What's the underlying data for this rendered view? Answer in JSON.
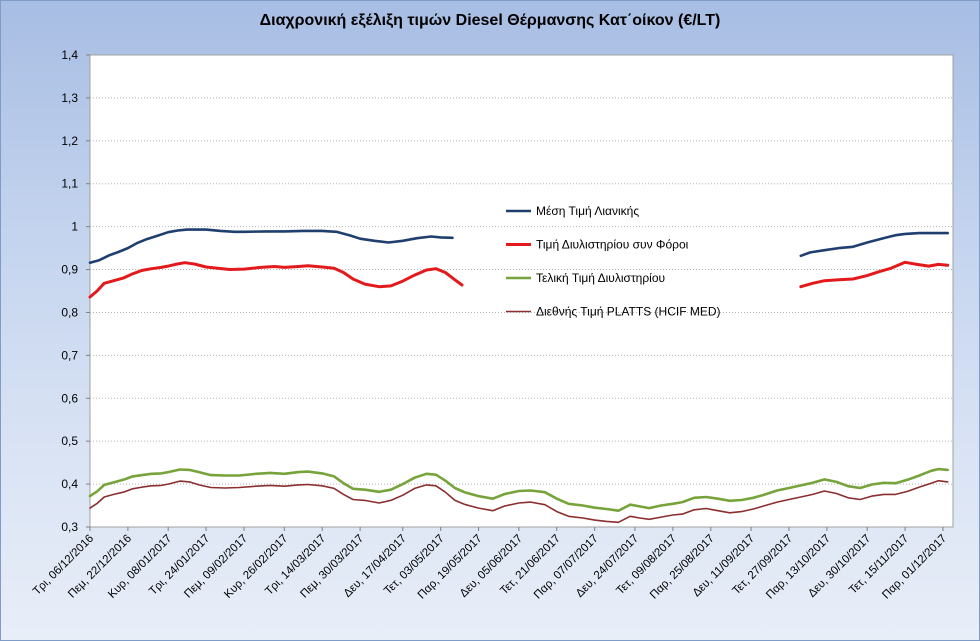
{
  "chart_data": {
    "type": "line",
    "title": "Διαχρονική εξέλιξη τιμών Diesel Θέρμανσης Κατ΄οίκον (€/LT)",
    "xlabel": "",
    "ylabel": "",
    "ylim": [
      0.3,
      1.4
    ],
    "yticks": [
      "0,3",
      "0,4",
      "0,5",
      "0,6",
      "0,7",
      "0,8",
      "0,9",
      "1",
      "1,1",
      "1,2",
      "1,3",
      "1,4"
    ],
    "grid": true,
    "legend_position": "right-middle",
    "xlim_days": [
      0,
      360
    ],
    "x": [
      "Τρι, 06/12/2016",
      "Πεμ, 22/12/2016",
      "Κυρ, 08/01/2017",
      "Τρι, 24/01/2017",
      "Πεμ, 09/02/2017",
      "Κυρ, 26/02/2017",
      "Τρι, 14/03/2017",
      "Πεμ, 30/03/2017",
      "Δευ, 17/04/2017",
      "Τετ, 03/05/2017",
      "Παρ, 19/05/2017",
      "Δευ, 05/06/2017",
      "Τετ, 21/06/2017",
      "Παρ, 07/07/2017",
      "Δευ, 24/07/2017",
      "Τετ, 09/08/2017",
      "Παρ, 25/08/2017",
      "Δευ, 11/09/2017",
      "Τετ, 27/09/2017",
      "Παρ, 13/10/2017",
      "Δευ, 30/10/2017",
      "Τετ, 15/11/2017",
      "Παρ, 01/12/2017"
    ],
    "x_days": [
      0,
      16,
      33,
      49,
      65,
      82,
      98,
      114,
      132,
      148,
      164,
      181,
      197,
      213,
      230,
      246,
      262,
      279,
      295,
      311,
      328,
      344,
      360
    ],
    "series": [
      {
        "name": "Μέση Τιμή Λιανικής",
        "color": "#1f3f6e",
        "segments": [
          [
            [
              0,
              0.916
            ],
            [
              4,
              0.922
            ],
            [
              8,
              0.933
            ],
            [
              12,
              0.941
            ],
            [
              16,
              0.95
            ],
            [
              20,
              0.962
            ],
            [
              24,
              0.971
            ],
            [
              28,
              0.978
            ],
            [
              33,
              0.987
            ],
            [
              37,
              0.991
            ],
            [
              41,
              0.993
            ],
            [
              49,
              0.993
            ],
            [
              55,
              0.99
            ],
            [
              61,
              0.988
            ],
            [
              65,
              0.988
            ],
            [
              75,
              0.989
            ],
            [
              82,
              0.989
            ],
            [
              90,
              0.99
            ],
            [
              98,
              0.99
            ],
            [
              104,
              0.988
            ],
            [
              110,
              0.979
            ],
            [
              114,
              0.972
            ],
            [
              120,
              0.967
            ],
            [
              126,
              0.963
            ],
            [
              132,
              0.967
            ],
            [
              138,
              0.973
            ],
            [
              144,
              0.977
            ],
            [
              148,
              0.975
            ],
            [
              153,
              0.974
            ]
          ],
          [
            [
              300,
              0.932
            ],
            [
              304,
              0.94
            ],
            [
              310,
              0.945
            ],
            [
              316,
              0.95
            ],
            [
              322,
              0.953
            ],
            [
              328,
              0.963
            ],
            [
              334,
              0.972
            ],
            [
              340,
              0.98
            ],
            [
              344,
              0.983
            ],
            [
              350,
              0.985
            ],
            [
              356,
              0.985
            ],
            [
              362,
              0.985
            ]
          ]
        ]
      },
      {
        "name": "Τιμή Διυλιστηρίου συν Φόροι",
        "color": "#e31a1c",
        "segments": [
          [
            [
              0,
              0.836
            ],
            [
              3,
              0.85
            ],
            [
              6,
              0.868
            ],
            [
              10,
              0.874
            ],
            [
              14,
              0.88
            ],
            [
              18,
              0.89
            ],
            [
              22,
              0.898
            ],
            [
              26,
              0.902
            ],
            [
              30,
              0.905
            ],
            [
              33,
              0.908
            ],
            [
              36,
              0.912
            ],
            [
              40,
              0.916
            ],
            [
              44,
              0.913
            ],
            [
              49,
              0.906
            ],
            [
              54,
              0.903
            ],
            [
              59,
              0.9
            ],
            [
              65,
              0.901
            ],
            [
              72,
              0.905
            ],
            [
              78,
              0.907
            ],
            [
              82,
              0.905
            ],
            [
              88,
              0.907
            ],
            [
              92,
              0.909
            ],
            [
              98,
              0.906
            ],
            [
              103,
              0.903
            ],
            [
              107,
              0.893
            ],
            [
              111,
              0.878
            ],
            [
              116,
              0.866
            ],
            [
              122,
              0.86
            ],
            [
              127,
              0.862
            ],
            [
              132,
              0.873
            ],
            [
              137,
              0.887
            ],
            [
              142,
              0.899
            ],
            [
              146,
              0.902
            ],
            [
              150,
              0.893
            ],
            [
              154,
              0.876
            ],
            [
              157,
              0.864
            ]
          ],
          [
            [
              300,
              0.86
            ],
            [
              305,
              0.868
            ],
            [
              310,
              0.874
            ],
            [
              316,
              0.876
            ],
            [
              322,
              0.878
            ],
            [
              328,
              0.886
            ],
            [
              333,
              0.895
            ],
            [
              338,
              0.903
            ],
            [
              344,
              0.917
            ],
            [
              349,
              0.912
            ],
            [
              354,
              0.908
            ],
            [
              358,
              0.912
            ],
            [
              362,
              0.91
            ]
          ]
        ]
      },
      {
        "name": "Τελική Τιμή Διυλιστηρίου",
        "color": "#77a33b",
        "segments": [
          [
            [
              0,
              0.372
            ],
            [
              3,
              0.383
            ],
            [
              6,
              0.398
            ],
            [
              10,
              0.404
            ],
            [
              14,
              0.41
            ],
            [
              18,
              0.418
            ],
            [
              22,
              0.421
            ],
            [
              26,
              0.424
            ],
            [
              30,
              0.425
            ],
            [
              33,
              0.428
            ],
            [
              38,
              0.434
            ],
            [
              42,
              0.433
            ],
            [
              46,
              0.428
            ],
            [
              51,
              0.421
            ],
            [
              57,
              0.42
            ],
            [
              63,
              0.42
            ],
            [
              70,
              0.424
            ],
            [
              76,
              0.426
            ],
            [
              82,
              0.424
            ],
            [
              88,
              0.428
            ],
            [
              92,
              0.429
            ],
            [
              98,
              0.425
            ],
            [
              103,
              0.418
            ],
            [
              107,
              0.402
            ],
            [
              111,
              0.389
            ],
            [
              116,
              0.387
            ],
            [
              122,
              0.382
            ],
            [
              127,
              0.387
            ],
            [
              132,
              0.4
            ],
            [
              137,
              0.415
            ],
            [
              142,
              0.424
            ],
            [
              146,
              0.422
            ],
            [
              150,
              0.408
            ],
            [
              154,
              0.391
            ],
            [
              158,
              0.381
            ],
            [
              164,
              0.372
            ],
            [
              170,
              0.366
            ],
            [
              175,
              0.377
            ],
            [
              181,
              0.384
            ],
            [
              186,
              0.385
            ],
            [
              192,
              0.381
            ],
            [
              197,
              0.366
            ],
            [
              202,
              0.354
            ],
            [
              208,
              0.35
            ],
            [
              213,
              0.345
            ],
            [
              218,
              0.342
            ],
            [
              223,
              0.338
            ],
            [
              228,
              0.352
            ],
            [
              232,
              0.348
            ],
            [
              236,
              0.344
            ],
            [
              241,
              0.35
            ],
            [
              246,
              0.354
            ],
            [
              250,
              0.358
            ],
            [
              255,
              0.368
            ],
            [
              260,
              0.37
            ],
            [
              265,
              0.366
            ],
            [
              270,
              0.361
            ],
            [
              275,
              0.363
            ],
            [
              280,
              0.368
            ],
            [
              285,
              0.376
            ],
            [
              290,
              0.385
            ],
            [
              295,
              0.391
            ],
            [
              300,
              0.397
            ],
            [
              305,
              0.403
            ],
            [
              310,
              0.411
            ],
            [
              315,
              0.405
            ],
            [
              320,
              0.395
            ],
            [
              325,
              0.391
            ],
            [
              330,
              0.399
            ],
            [
              335,
              0.403
            ],
            [
              340,
              0.402
            ],
            [
              345,
              0.41
            ],
            [
              350,
              0.42
            ],
            [
              355,
              0.431
            ],
            [
              358,
              0.435
            ],
            [
              362,
              0.433
            ]
          ]
        ]
      },
      {
        "name": "Διεθνής Τιμή PLATTS (HCIF MED)",
        "color": "#8b2e2e",
        "segments": [
          [
            [
              0,
              0.344
            ],
            [
              3,
              0.355
            ],
            [
              6,
              0.37
            ],
            [
              10,
              0.376
            ],
            [
              14,
              0.381
            ],
            [
              18,
              0.389
            ],
            [
              22,
              0.393
            ],
            [
              26,
              0.396
            ],
            [
              30,
              0.397
            ],
            [
              33,
              0.4
            ],
            [
              38,
              0.407
            ],
            [
              42,
              0.405
            ],
            [
              46,
              0.398
            ],
            [
              51,
              0.392
            ],
            [
              57,
              0.391
            ],
            [
              63,
              0.392
            ],
            [
              70,
              0.395
            ],
            [
              76,
              0.397
            ],
            [
              82,
              0.395
            ],
            [
              88,
              0.398
            ],
            [
              92,
              0.399
            ],
            [
              98,
              0.396
            ],
            [
              103,
              0.39
            ],
            [
              107,
              0.376
            ],
            [
              111,
              0.364
            ],
            [
              116,
              0.362
            ],
            [
              122,
              0.356
            ],
            [
              127,
              0.362
            ],
            [
              132,
              0.374
            ],
            [
              137,
              0.39
            ],
            [
              142,
              0.398
            ],
            [
              146,
              0.396
            ],
            [
              150,
              0.381
            ],
            [
              154,
              0.362
            ],
            [
              158,
              0.353
            ],
            [
              164,
              0.344
            ],
            [
              170,
              0.338
            ],
            [
              175,
              0.349
            ],
            [
              181,
              0.356
            ],
            [
              186,
              0.358
            ],
            [
              192,
              0.352
            ],
            [
              197,
              0.336
            ],
            [
              202,
              0.325
            ],
            [
              208,
              0.321
            ],
            [
              213,
              0.316
            ],
            [
              218,
              0.313
            ],
            [
              223,
              0.311
            ],
            [
              228,
              0.325
            ],
            [
              232,
              0.321
            ],
            [
              236,
              0.318
            ],
            [
              241,
              0.323
            ],
            [
              246,
              0.328
            ],
            [
              250,
              0.33
            ],
            [
              255,
              0.34
            ],
            [
              260,
              0.343
            ],
            [
              265,
              0.338
            ],
            [
              270,
              0.333
            ],
            [
              275,
              0.336
            ],
            [
              280,
              0.342
            ],
            [
              285,
              0.35
            ],
            [
              290,
              0.358
            ],
            [
              295,
              0.364
            ],
            [
              300,
              0.37
            ],
            [
              305,
              0.376
            ],
            [
              310,
              0.384
            ],
            [
              315,
              0.378
            ],
            [
              320,
              0.368
            ],
            [
              325,
              0.364
            ],
            [
              330,
              0.372
            ],
            [
              335,
              0.376
            ],
            [
              340,
              0.376
            ],
            [
              345,
              0.383
            ],
            [
              350,
              0.393
            ],
            [
              355,
              0.402
            ],
            [
              358,
              0.408
            ],
            [
              362,
              0.405
            ]
          ]
        ]
      }
    ]
  }
}
